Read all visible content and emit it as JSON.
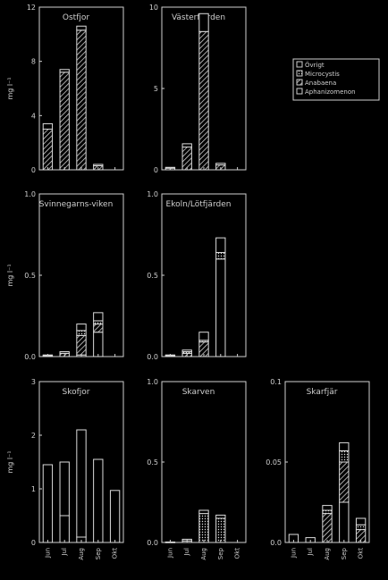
{
  "figure": {
    "legend": [
      {
        "label": "Övrigt",
        "pattern": "blank"
      },
      {
        "label": "Microcystis",
        "pattern": "dots"
      },
      {
        "label": "Anabaena",
        "pattern": "hatch"
      },
      {
        "label": "Aphanizomenon",
        "pattern": "blank"
      }
    ]
  },
  "chart_data": [
    {
      "type": "bar",
      "stacked": true,
      "title": "Ostfjor",
      "ylabel": "mg l⁻¹",
      "ylim": [
        0,
        12
      ],
      "yticks": [
        "0",
        "4",
        "8",
        "12"
      ],
      "categories": [
        "Jun",
        "Jul",
        "Aug",
        "Sep",
        "Okt"
      ],
      "series": [
        {
          "name": "Anabaena",
          "values": [
            3.0,
            7.2,
            10.3,
            0.3,
            0
          ]
        },
        {
          "name": "Övrigt",
          "values": [
            0.4,
            0.2,
            0.3,
            0.1,
            0
          ]
        }
      ]
    },
    {
      "type": "bar",
      "stacked": true,
      "title": "Västerfjärden",
      "ylim": [
        0,
        10
      ],
      "yticks": [
        "0",
        "5",
        "10"
      ],
      "categories": [
        "Jun",
        "Jul",
        "Aug",
        "Sep",
        "Okt"
      ],
      "series": [
        {
          "name": "Anabaena",
          "values": [
            0.1,
            1.4,
            8.5,
            0.3,
            0
          ]
        },
        {
          "name": "Övrigt",
          "values": [
            0.05,
            0.2,
            1.1,
            0.1,
            0
          ]
        }
      ]
    },
    {
      "type": "bar",
      "stacked": true,
      "title": "Svinnegarns-viken",
      "ylabel": "mg l⁻¹",
      "ylim": [
        0,
        1.0
      ],
      "yticks": [
        "0.0",
        "0.5",
        "1.0"
      ],
      "categories": [
        "Jun",
        "Jul",
        "Aug",
        "Sep",
        "Okt"
      ],
      "series": [
        {
          "name": "Aphanizomenon",
          "values": [
            0,
            0,
            0.01,
            0.15,
            0
          ]
        },
        {
          "name": "Anabaena",
          "values": [
            0.005,
            0.02,
            0.12,
            0.05,
            0
          ]
        },
        {
          "name": "Microcystis",
          "values": [
            0,
            0,
            0.03,
            0.02,
            0
          ]
        },
        {
          "name": "Övrigt",
          "values": [
            0.005,
            0.01,
            0.04,
            0.05,
            0
          ]
        }
      ]
    },
    {
      "type": "bar",
      "stacked": true,
      "title": "Ekoln/Lötfjärden",
      "ylim": [
        0,
        1.0
      ],
      "yticks": [
        "0.0",
        "0.5",
        "1.0"
      ],
      "categories": [
        "Jun",
        "Jul",
        "Aug",
        "Sep",
        "Okt"
      ],
      "series": [
        {
          "name": "Aphanizomenon",
          "values": [
            0,
            0,
            0,
            0.6,
            0
          ]
        },
        {
          "name": "Anabaena",
          "values": [
            0.005,
            0.02,
            0.09,
            0.0,
            0
          ]
        },
        {
          "name": "Microcystis",
          "values": [
            0,
            0.01,
            0.01,
            0.04,
            0
          ]
        },
        {
          "name": "Övrigt",
          "values": [
            0.005,
            0.01,
            0.05,
            0.09,
            0
          ]
        }
      ]
    },
    {
      "type": "bar",
      "stacked": true,
      "title": "Skofjor",
      "ylabel": "mg l⁻¹",
      "ylim": [
        0,
        3
      ],
      "yticks": [
        "0",
        "1",
        "2",
        "3"
      ],
      "categories": [
        "Jun",
        "Jul",
        "Aug",
        "Sep",
        "Okt"
      ],
      "series": [
        {
          "name": "Aphanizomenon",
          "values": [
            0,
            0.5,
            0.1,
            0,
            0
          ]
        },
        {
          "name": "Övrigt",
          "values": [
            1.45,
            1.0,
            2.0,
            1.55,
            0.97
          ]
        }
      ]
    },
    {
      "type": "bar",
      "stacked": true,
      "title": "Skarven",
      "ylim": [
        0,
        1.0
      ],
      "yticks": [
        "0.0",
        "0.5",
        "1.0"
      ],
      "categories": [
        "Jun",
        "Jul",
        "Aug",
        "Sep",
        "Okt"
      ],
      "series": [
        {
          "name": "Microcystis",
          "values": [
            0,
            0.01,
            0.18,
            0.15,
            0
          ]
        },
        {
          "name": "Övrigt",
          "values": [
            0.003,
            0.01,
            0.02,
            0.02,
            0
          ]
        }
      ]
    },
    {
      "type": "bar",
      "stacked": true,
      "title": "Skarfjär",
      "ylim": [
        0,
        0.1
      ],
      "yticks": [
        "0.0",
        "0.05",
        "0.1"
      ],
      "categories": [
        "Jun",
        "Jul",
        "Aug",
        "Sep",
        "Okt"
      ],
      "series": [
        {
          "name": "Aphanizomenon",
          "values": [
            0,
            0,
            0,
            0.025,
            0
          ]
        },
        {
          "name": "Anabaena",
          "values": [
            0.0,
            0.0,
            0.018,
            0.025,
            0.008
          ]
        },
        {
          "name": "Microcystis",
          "values": [
            0.0,
            0.0,
            0.002,
            0.007,
            0.003
          ]
        },
        {
          "name": "Övrigt",
          "values": [
            0.005,
            0.003,
            0.003,
            0.005,
            0.004
          ]
        }
      ]
    }
  ]
}
